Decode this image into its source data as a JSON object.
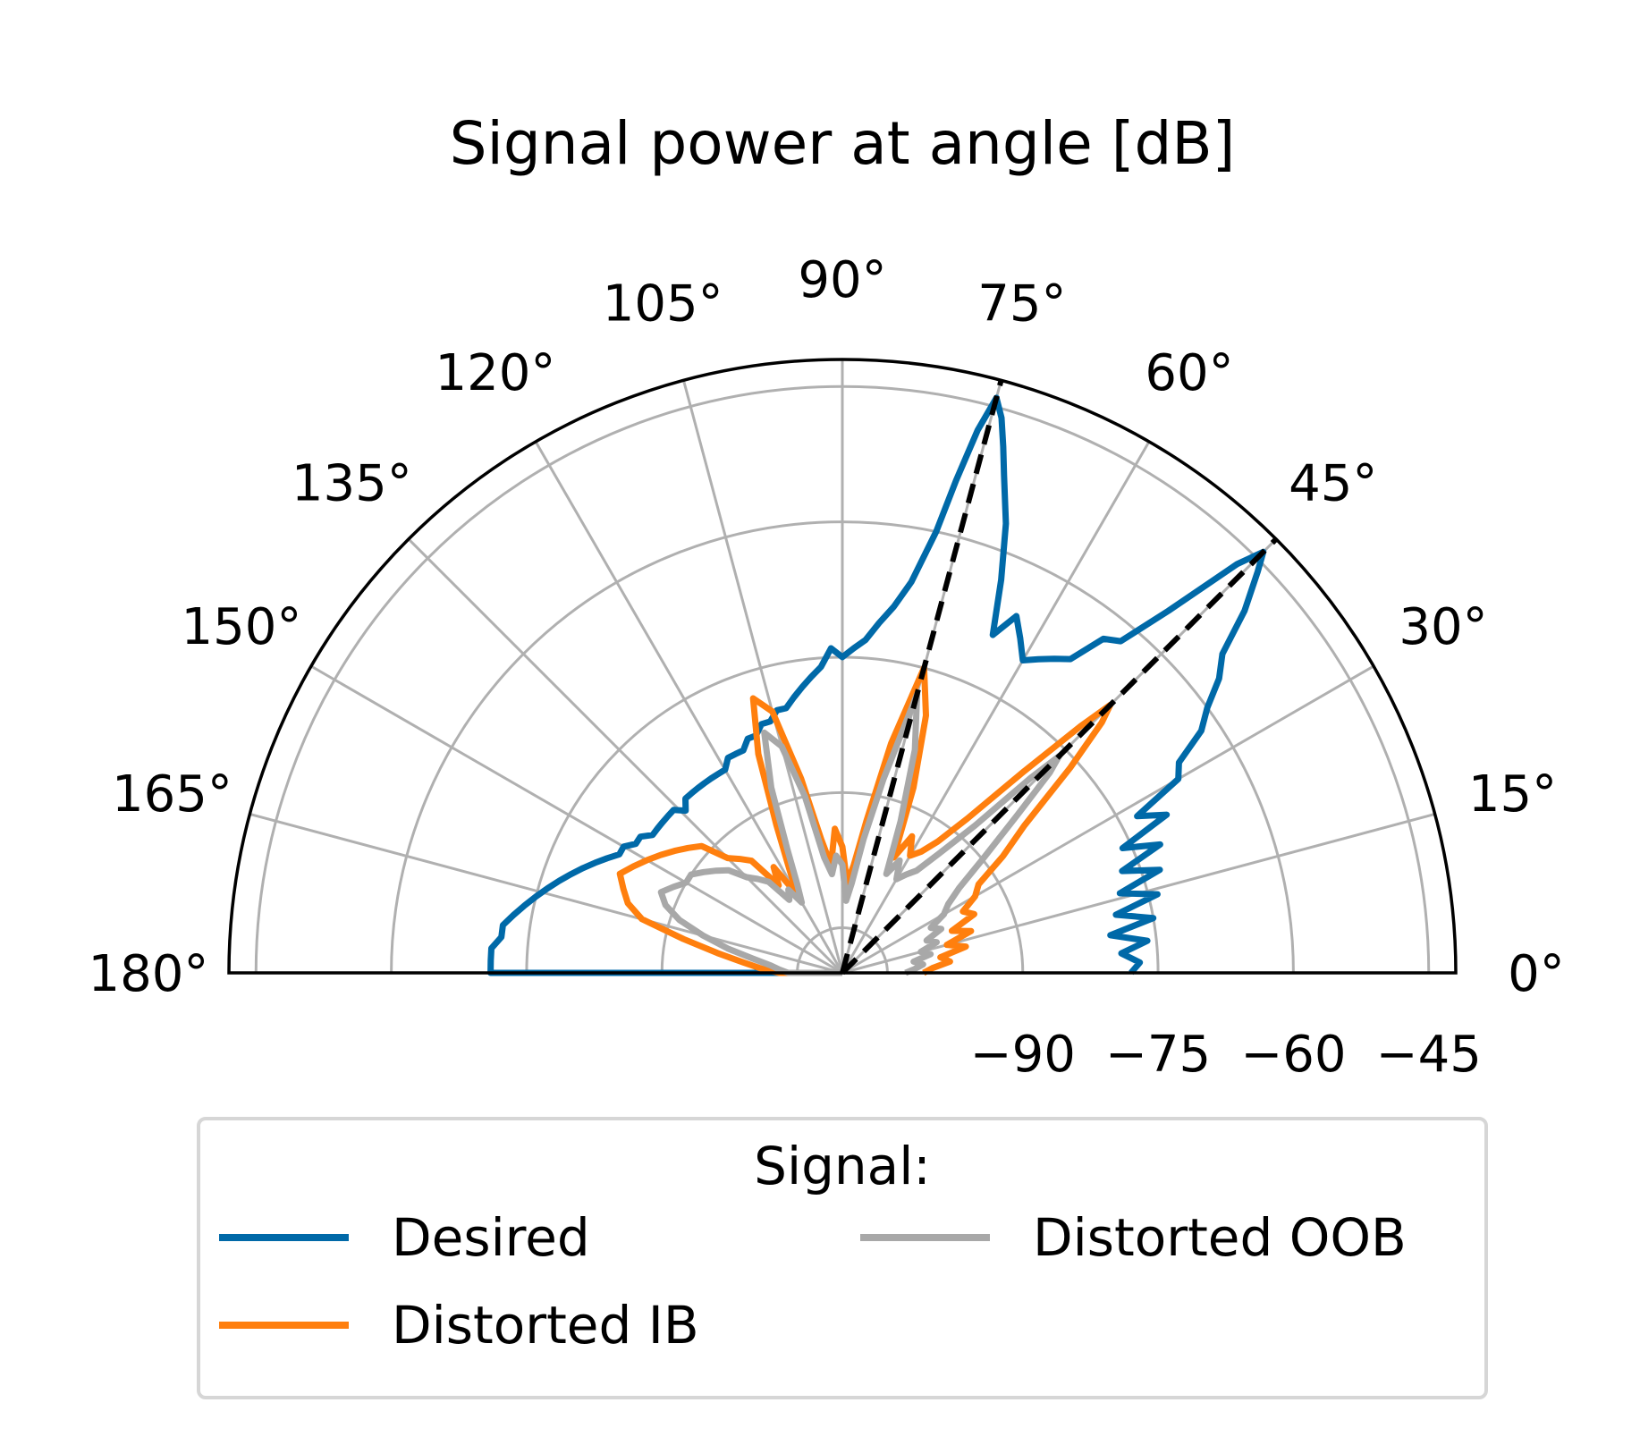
{
  "chart_data": {
    "type": "line",
    "polar": true,
    "title": "Signal power at angle [dB]",
    "theta_range": [
      0,
      180
    ],
    "theta_unit": "deg",
    "r_range": [
      -110,
      -42
    ],
    "theta_ticks": [
      "0°",
      "15°",
      "30°",
      "45°",
      "60°",
      "75°",
      "90°",
      "105°",
      "120°",
      "135°",
      "150°",
      "165°",
      "180°"
    ],
    "theta_tick_values": [
      0,
      15,
      30,
      45,
      60,
      75,
      90,
      105,
      120,
      135,
      150,
      165,
      180
    ],
    "r_ticks": [
      "−90",
      "−75",
      "−60",
      "−45"
    ],
    "r_tick_values": [
      -90,
      -75,
      -60,
      -45
    ],
    "grid": true,
    "reference_lines": [
      {
        "theta": 75,
        "style": "dashed",
        "color": "#000000"
      },
      {
        "theta": 45,
        "style": "dashed",
        "color": "#000000"
      }
    ],
    "legend": {
      "title": "Signal:",
      "placement": "bottom-center",
      "columns": 2
    },
    "series": [
      {
        "name": "Desired",
        "color": "#0069a8",
        "theta": [
          0,
          2,
          4,
          6,
          8,
          10,
          12,
          14,
          16,
          18,
          20,
          22,
          24,
          26,
          28,
          30,
          32,
          34,
          36,
          38,
          40,
          42,
          44,
          45,
          46,
          48,
          50,
          52,
          54,
          56,
          58,
          60,
          62,
          64,
          66,
          68,
          70,
          72,
          73,
          74,
          75,
          76,
          77,
          78,
          80,
          82,
          84,
          86,
          88,
          90,
          92,
          94,
          96,
          98,
          100,
          102,
          104,
          106,
          108,
          110,
          112,
          114,
          116,
          118,
          120,
          122,
          124,
          126,
          128,
          130,
          132,
          134,
          136,
          138,
          140,
          142,
          144,
          146,
          148,
          150,
          152,
          154,
          156,
          158,
          160,
          162,
          164,
          166,
          168,
          170,
          172,
          174,
          176,
          178,
          180
        ],
        "r": [
          -78,
          -77,
          -79,
          -76,
          -80,
          -75,
          -79,
          -74,
          -78,
          -73,
          -77,
          -72,
          -76,
          -70,
          -73,
          -67,
          -66,
          -62,
          -60,
          -57,
          -55,
          -50,
          -46,
          -44,
          -47,
          -56,
          -62,
          -63,
          -67,
          -68,
          -69,
          -70,
          -68,
          -66,
          -69,
          -63,
          -57,
          -52,
          -49,
          -46,
          -44,
          -48,
          -54,
          -60,
          -66,
          -69,
          -71,
          -73,
          -74,
          -75,
          -74,
          -76,
          -77,
          -78,
          -79,
          -80,
          -80,
          -81,
          -81,
          -82,
          -82,
          -83,
          -83,
          -83,
          -84,
          -84,
          -84,
          -84,
          -84,
          -84,
          -84,
          -85,
          -84,
          -84,
          -84,
          -84,
          -84,
          -83,
          -83,
          -82,
          -82,
          -81,
          -80,
          -79,
          -78,
          -77,
          -76,
          -75,
          -74,
          -73,
          -72,
          -72,
          -71,
          -71,
          -71
        ]
      },
      {
        "name": "Distorted IB",
        "color": "#ff7f0e",
        "theta": [
          0,
          3,
          6,
          9,
          12,
          15,
          18,
          21,
          24,
          27,
          30,
          33,
          36,
          39,
          42,
          44,
          45,
          46,
          48,
          51,
          54,
          57,
          60,
          63,
          66,
          69,
          72,
          75,
          78,
          81,
          84,
          87,
          90,
          93,
          96,
          99,
          102,
          105,
          108,
          111,
          114,
          117,
          120,
          123,
          126,
          129,
          132,
          135,
          138,
          141,
          144,
          147,
          150,
          153,
          156,
          159,
          162,
          165,
          168,
          171,
          174,
          177,
          180
        ],
        "r": [
          -101,
          -100,
          -98,
          -99,
          -96,
          -98,
          -95,
          -97,
          -94,
          -95,
          -93,
          -92,
          -88,
          -84,
          -76,
          -70,
          -68,
          -72,
          -80,
          -88,
          -92,
          -94,
          -95,
          -93,
          -96,
          -88,
          -80,
          -75,
          -84,
          -93,
          -98,
          -100,
          -96,
          -94,
          -98,
          -95,
          -88,
          -80,
          -78,
          -84,
          -92,
          -97,
          -100,
          -96,
          -98,
          -94,
          -93,
          -92,
          -89,
          -88,
          -87,
          -86,
          -85,
          -84,
          -83,
          -84,
          -85,
          -87,
          -92,
          -96,
          -99,
          -101,
          -103
        ]
      },
      {
        "name": "Distorted OOB",
        "color": "#a8a8a8",
        "theta": [
          0,
          3,
          6,
          9,
          12,
          15,
          18,
          21,
          24,
          27,
          30,
          33,
          36,
          39,
          42,
          44,
          45,
          46,
          48,
          51,
          54,
          57,
          60,
          63,
          66,
          69,
          72,
          75,
          78,
          81,
          84,
          87,
          90,
          93,
          96,
          99,
          102,
          105,
          108,
          111,
          114,
          117,
          120,
          123,
          126,
          129,
          132,
          135,
          138,
          141,
          144,
          147,
          150,
          153,
          156,
          159,
          162,
          165,
          168,
          171,
          174,
          177,
          180
        ],
        "r": [
          -103,
          -102,
          -101,
          -102,
          -100,
          -101,
          -99,
          -100,
          -98,
          -99,
          -97,
          -96,
          -94,
          -90,
          -84,
          -78,
          -76,
          -80,
          -88,
          -93,
          -96,
          -97,
          -98,
          -96,
          -98,
          -92,
          -84,
          -78,
          -88,
          -95,
          -100,
          -102,
          -98,
          -97,
          -99,
          -97,
          -90,
          -84,
          -82,
          -88,
          -95,
          -99,
          -101,
          -99,
          -100,
          -97,
          -96,
          -95,
          -93,
          -92,
          -91,
          -90,
          -90,
          -89,
          -88,
          -89,
          -91,
          -94,
          -97,
          -100,
          -102,
          -103,
          -104
        ]
      }
    ]
  }
}
